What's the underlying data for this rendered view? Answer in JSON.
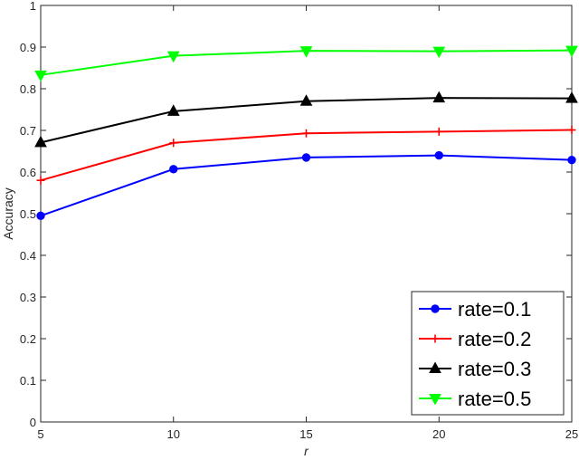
{
  "chart_data": {
    "type": "line",
    "xlabel": "r",
    "ylabel": "Accuracy",
    "x": [
      5,
      10,
      15,
      20,
      25
    ],
    "xlim": [
      5,
      25
    ],
    "ylim": [
      0,
      1
    ],
    "xticks": [
      "5",
      "10",
      "15",
      "20",
      "25"
    ],
    "yticks": [
      "0",
      "0.1",
      "0.2",
      "0.3",
      "0.4",
      "0.5",
      "0.6",
      "0.7",
      "0.8",
      "0.9",
      "1"
    ],
    "grid": false,
    "legend_position": "bottom-right",
    "series": [
      {
        "name": "rate=0.1",
        "color": "#0000ff",
        "marker": "circle",
        "values": [
          0.495,
          0.607,
          0.635,
          0.64,
          0.629
        ]
      },
      {
        "name": "rate=0.2",
        "color": "#ff0000",
        "marker": "plus",
        "values": [
          0.58,
          0.67,
          0.693,
          0.697,
          0.701
        ]
      },
      {
        "name": "rate=0.3",
        "color": "#000000",
        "marker": "triangle-up",
        "values": [
          0.671,
          0.746,
          0.77,
          0.778,
          0.777
        ]
      },
      {
        "name": "rate=0.5",
        "color": "#00ff00",
        "marker": "triangle-down",
        "values": [
          0.833,
          0.879,
          0.891,
          0.89,
          0.892
        ]
      }
    ]
  }
}
